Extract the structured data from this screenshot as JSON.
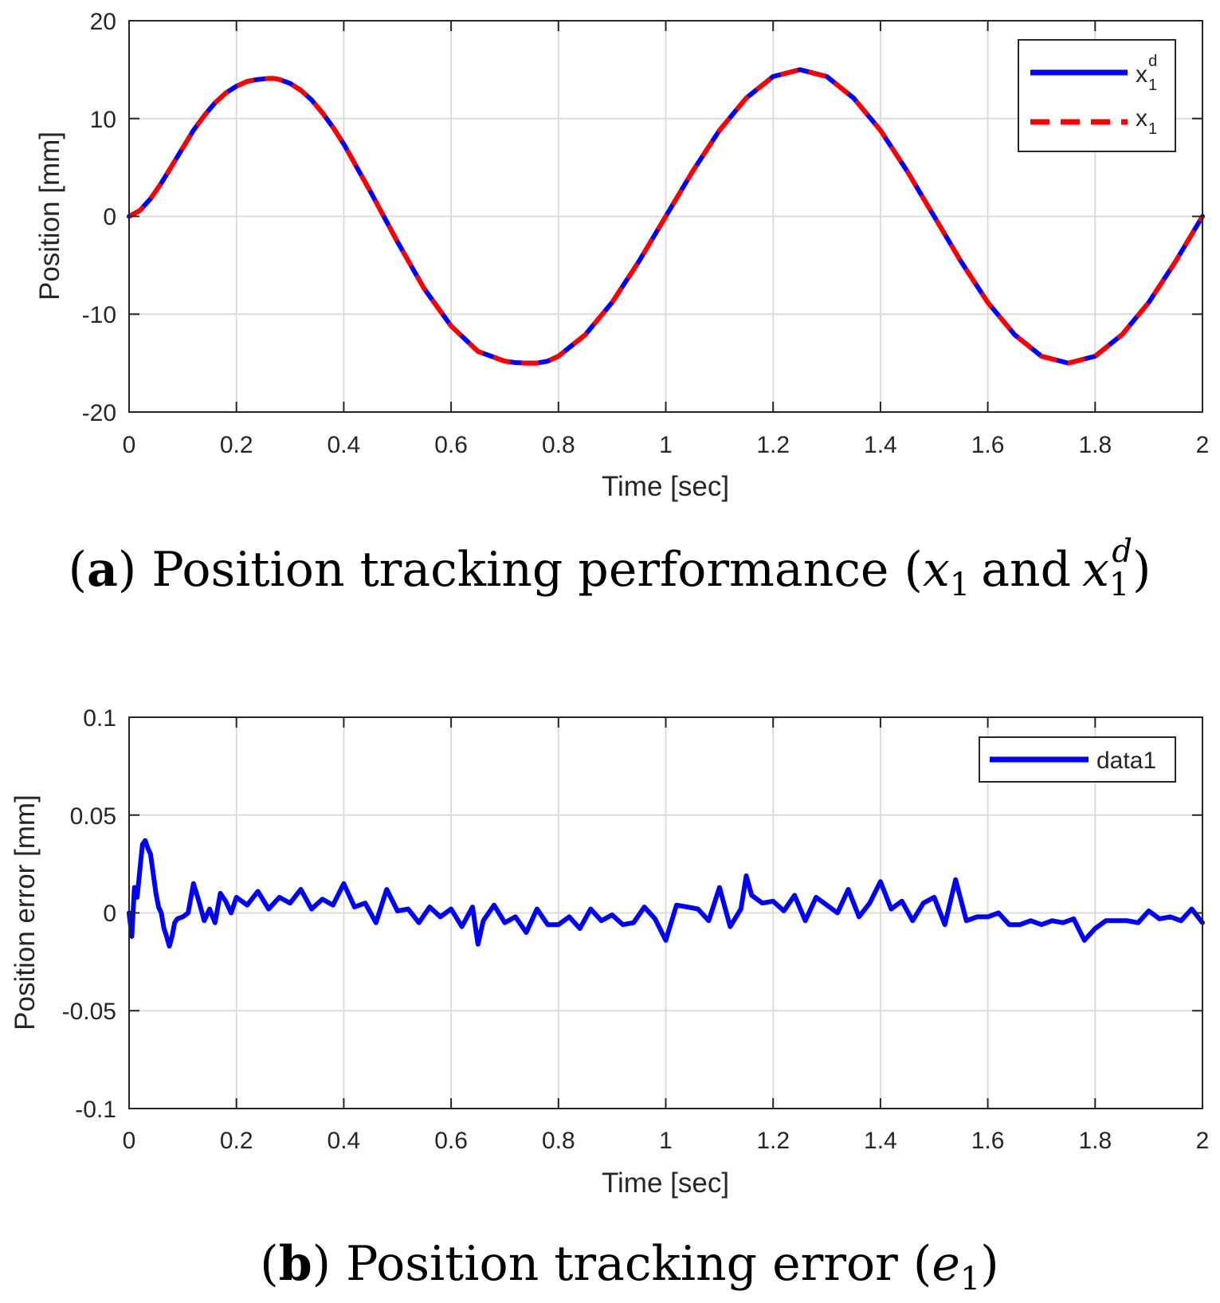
{
  "chart_data": [
    {
      "id": "a",
      "type": "line",
      "xlabel": "Time [sec]",
      "ylabel": "Position [mm]",
      "xlim": [
        0,
        2
      ],
      "ylim": [
        -20,
        20
      ],
      "xticks": [
        "0",
        "0.2",
        "0.4",
        "0.6",
        "0.8",
        "1",
        "1.2",
        "1.4",
        "1.6",
        "1.8",
        "2"
      ],
      "yticks": [
        "20",
        "10",
        "0",
        "-10",
        "-20"
      ],
      "xtick_values": [
        0,
        0.2,
        0.4,
        0.6,
        0.8,
        1.0,
        1.2,
        1.4,
        1.6,
        1.8,
        2.0
      ],
      "ytick_values": [
        20,
        10,
        0,
        -10,
        -20
      ],
      "grid": true,
      "legend_position": "top-right",
      "series": [
        {
          "name": "x_1^d",
          "legend_base": "x",
          "legend_sub": "1",
          "legend_sup": "d",
          "color": "#0000ff",
          "style": "solid",
          "x": [
            0,
            0.02,
            0.04,
            0.06,
            0.08,
            0.1,
            0.12,
            0.14,
            0.16,
            0.18,
            0.2,
            0.22,
            0.24,
            0.26,
            0.27,
            0.28,
            0.3,
            0.32,
            0.34,
            0.36,
            0.38,
            0.4,
            0.45,
            0.5,
            0.55,
            0.6,
            0.65,
            0.7,
            0.72,
            0.74,
            0.75,
            0.76,
            0.78,
            0.8,
            0.85,
            0.9,
            0.95,
            1.0,
            1.05,
            1.1,
            1.15,
            1.2,
            1.25,
            1.3,
            1.35,
            1.4,
            1.45,
            1.5,
            1.55,
            1.6,
            1.65,
            1.7,
            1.75,
            1.8,
            1.85,
            1.9,
            1.95,
            2.0
          ],
          "y": [
            0,
            0.6,
            1.8,
            3.4,
            5.2,
            7.0,
            8.8,
            10.3,
            11.6,
            12.6,
            13.3,
            13.8,
            14.0,
            14.1,
            14.1,
            14.0,
            13.6,
            12.9,
            11.9,
            10.6,
            9.1,
            7.4,
            2.5,
            -2.6,
            -7.4,
            -11.2,
            -13.8,
            -14.8,
            -14.95,
            -15.0,
            -15.0,
            -15.0,
            -14.8,
            -14.3,
            -12.1,
            -8.8,
            -4.6,
            0,
            4.6,
            8.8,
            12.1,
            14.3,
            15.0,
            14.3,
            12.1,
            8.8,
            4.6,
            0,
            -4.6,
            -8.8,
            -12.1,
            -14.3,
            -15.0,
            -14.3,
            -12.1,
            -8.8,
            -4.6,
            0
          ]
        },
        {
          "name": "x_1",
          "legend_base": "x",
          "legend_sub": "1",
          "legend_sup": "",
          "color": "#ff0000",
          "style": "dashed",
          "x": [
            0,
            0.02,
            0.04,
            0.06,
            0.08,
            0.1,
            0.12,
            0.14,
            0.16,
            0.18,
            0.2,
            0.22,
            0.24,
            0.26,
            0.27,
            0.28,
            0.3,
            0.32,
            0.34,
            0.36,
            0.38,
            0.4,
            0.45,
            0.5,
            0.55,
            0.6,
            0.65,
            0.7,
            0.72,
            0.74,
            0.75,
            0.76,
            0.78,
            0.8,
            0.85,
            0.9,
            0.95,
            1.0,
            1.05,
            1.1,
            1.15,
            1.2,
            1.25,
            1.3,
            1.35,
            1.4,
            1.45,
            1.5,
            1.55,
            1.6,
            1.65,
            1.7,
            1.75,
            1.8,
            1.85,
            1.9,
            1.95,
            2.0
          ],
          "y": [
            0,
            0.6,
            1.8,
            3.4,
            5.2,
            7.0,
            8.8,
            10.3,
            11.6,
            12.6,
            13.3,
            13.8,
            14.0,
            14.1,
            14.1,
            14.0,
            13.6,
            12.9,
            11.9,
            10.6,
            9.1,
            7.4,
            2.5,
            -2.6,
            -7.4,
            -11.2,
            -13.8,
            -14.8,
            -14.95,
            -15.0,
            -15.0,
            -15.0,
            -14.8,
            -14.3,
            -12.1,
            -8.8,
            -4.6,
            0,
            4.6,
            8.8,
            12.1,
            14.3,
            15.0,
            14.3,
            12.1,
            8.8,
            4.6,
            0,
            -4.6,
            -8.8,
            -12.1,
            -14.3,
            -15.0,
            -14.3,
            -12.1,
            -8.8,
            -4.6,
            0
          ]
        }
      ]
    },
    {
      "id": "b",
      "type": "line",
      "xlabel": "Time [sec]",
      "ylabel": "Position error [mm]",
      "xlim": [
        0,
        2
      ],
      "ylim": [
        -0.1,
        0.1
      ],
      "xticks": [
        "0",
        "0.2",
        "0.4",
        "0.6",
        "0.8",
        "1",
        "1.2",
        "1.4",
        "1.6",
        "1.8",
        "2"
      ],
      "yticks": [
        "0.1",
        "0.05",
        "0",
        "-0.05",
        "-0.1"
      ],
      "xtick_values": [
        0,
        0.2,
        0.4,
        0.6,
        0.8,
        1.0,
        1.2,
        1.4,
        1.6,
        1.8,
        2.0
      ],
      "ytick_values": [
        0.1,
        0.05,
        0,
        -0.05,
        -0.1
      ],
      "grid": true,
      "legend_position": "top-right",
      "series": [
        {
          "name": "data1",
          "color": "#0000ff",
          "style": "solid",
          "x": [
            0,
            0.005,
            0.01,
            0.015,
            0.02,
            0.025,
            0.03,
            0.035,
            0.04,
            0.045,
            0.05,
            0.055,
            0.06,
            0.065,
            0.07,
            0.075,
            0.08,
            0.085,
            0.09,
            0.1,
            0.11,
            0.12,
            0.13,
            0.14,
            0.15,
            0.16,
            0.17,
            0.18,
            0.19,
            0.2,
            0.22,
            0.24,
            0.26,
            0.28,
            0.3,
            0.32,
            0.34,
            0.36,
            0.38,
            0.4,
            0.42,
            0.44,
            0.46,
            0.48,
            0.5,
            0.52,
            0.54,
            0.56,
            0.58,
            0.6,
            0.62,
            0.64,
            0.65,
            0.66,
            0.68,
            0.7,
            0.72,
            0.74,
            0.76,
            0.78,
            0.8,
            0.82,
            0.84,
            0.86,
            0.88,
            0.9,
            0.92,
            0.94,
            0.96,
            0.98,
            1.0,
            1.02,
            1.04,
            1.06,
            1.08,
            1.1,
            1.12,
            1.14,
            1.15,
            1.16,
            1.18,
            1.2,
            1.22,
            1.24,
            1.26,
            1.28,
            1.3,
            1.32,
            1.34,
            1.36,
            1.38,
            1.4,
            1.42,
            1.44,
            1.46,
            1.48,
            1.5,
            1.52,
            1.54,
            1.56,
            1.58,
            1.6,
            1.62,
            1.64,
            1.66,
            1.68,
            1.7,
            1.72,
            1.74,
            1.76,
            1.78,
            1.8,
            1.82,
            1.84,
            1.86,
            1.88,
            1.9,
            1.92,
            1.94,
            1.96,
            1.98,
            2.0
          ],
          "y": [
            0,
            -0.012,
            0.013,
            0.008,
            0.022,
            0.035,
            0.037,
            0.033,
            0.03,
            0.02,
            0.01,
            0.003,
            0.0,
            -0.008,
            -0.012,
            -0.017,
            -0.012,
            -0.005,
            -0.003,
            -0.002,
            0.0,
            0.015,
            0.006,
            -0.004,
            0.002,
            -0.005,
            0.01,
            0.006,
            0.0,
            0.008,
            0.004,
            0.011,
            0.002,
            0.008,
            0.005,
            0.012,
            0.002,
            0.007,
            0.004,
            0.015,
            0.003,
            0.005,
            -0.005,
            0.012,
            0.001,
            0.002,
            -0.005,
            0.003,
            -0.002,
            0.002,
            -0.007,
            0.003,
            -0.016,
            -0.004,
            0.004,
            -0.005,
            -0.002,
            -0.01,
            0.002,
            -0.006,
            -0.006,
            -0.002,
            -0.008,
            0.002,
            -0.004,
            -0.001,
            -0.006,
            -0.005,
            0.003,
            -0.003,
            -0.014,
            0.004,
            0.003,
            0.002,
            -0.004,
            0.013,
            -0.007,
            0.002,
            0.019,
            0.009,
            0.005,
            0.006,
            0.001,
            0.009,
            -0.004,
            0.008,
            0.004,
            0.0,
            0.012,
            -0.002,
            0.005,
            0.016,
            0.002,
            0.006,
            -0.004,
            0.005,
            0.008,
            -0.006,
            0.017,
            -0.004,
            -0.002,
            -0.002,
            0.0,
            -0.006,
            -0.006,
            -0.004,
            -0.006,
            -0.004,
            -0.005,
            -0.003,
            -0.014,
            -0.008,
            -0.004,
            -0.004,
            -0.004,
            -0.005,
            0.001,
            -0.003,
            -0.002,
            -0.004,
            0.002,
            -0.005
          ]
        }
      ]
    }
  ],
  "captions": {
    "a": {
      "letter": "a",
      "text": "Position tracking performance",
      "math_var": "x",
      "math_sub": "1",
      "and_text": "and",
      "math_sup": "d"
    },
    "b": {
      "letter": "b",
      "text": "Position tracking error",
      "math_var": "e",
      "math_sub": "1"
    }
  }
}
